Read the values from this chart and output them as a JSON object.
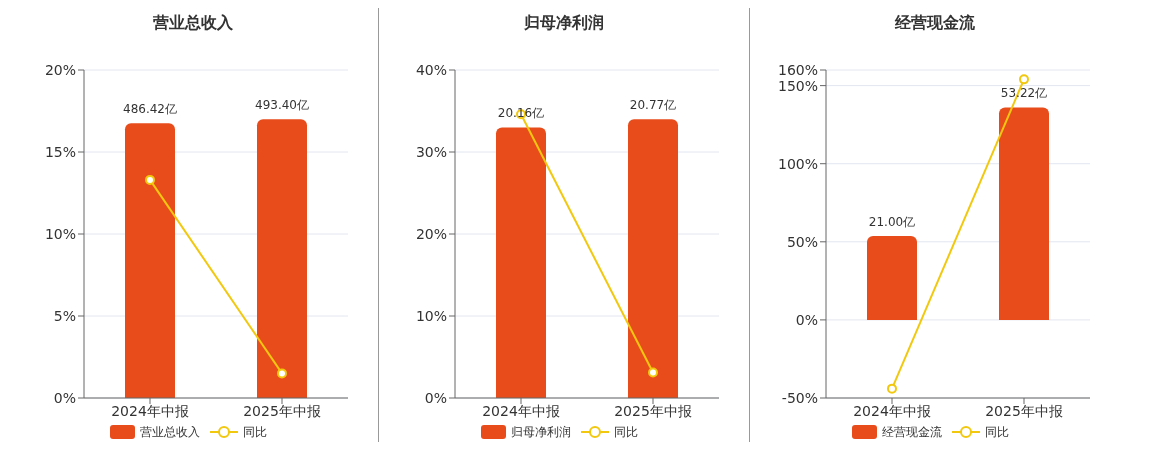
{
  "chart_data": [
    {
      "type": "bar",
      "title": "营业总收入",
      "categories": [
        "2024年中报",
        "2025年中报"
      ],
      "ylim": [
        0,
        20
      ],
      "yticks": [
        {
          "value": 0,
          "label": "0%"
        },
        {
          "value": 5,
          "label": "5%"
        },
        {
          "value": 10,
          "label": "10%"
        },
        {
          "value": 15,
          "label": "15%"
        },
        {
          "value": 20,
          "label": "20%"
        }
      ],
      "grid": "y",
      "legend": "bottom",
      "series": [
        {
          "name": "营业总收入",
          "axis": "y2",
          "color": "#e84c1b",
          "values": [
            486.42,
            493.4
          ],
          "value_labels": [
            "486.42亿",
            "493.40亿"
          ]
        },
        {
          "name": "同比",
          "type": "line",
          "color": "#f2c80f",
          "marker": "circle",
          "values": [
            13.3,
            1.5
          ]
        }
      ]
    },
    {
      "type": "bar",
      "title": "归母净利润",
      "categories": [
        "2024年中报",
        "2025年中报"
      ],
      "ylim": [
        0,
        40
      ],
      "yticks": [
        {
          "value": 0,
          "label": "0%"
        },
        {
          "value": 10,
          "label": "10%"
        },
        {
          "value": 20,
          "label": "20%"
        },
        {
          "value": 30,
          "label": "30%"
        },
        {
          "value": 40,
          "label": "40%"
        }
      ],
      "grid": "y",
      "legend": "bottom",
      "series": [
        {
          "name": "归母净利润",
          "axis": "y2",
          "color": "#e84c1b",
          "values": [
            20.16,
            20.77
          ],
          "value_labels": [
            "20.16亿",
            "20.77亿"
          ]
        },
        {
          "name": "同比",
          "type": "line",
          "color": "#f2c80f",
          "marker": "circle",
          "values": [
            34.6,
            3.1
          ]
        }
      ]
    },
    {
      "type": "bar",
      "title": "经营现金流",
      "categories": [
        "2024年中报",
        "2025年中报"
      ],
      "ylim": [
        -50,
        160
      ],
      "yticks": [
        {
          "value": -50,
          "label": "-50%"
        },
        {
          "value": 0,
          "label": "0%"
        },
        {
          "value": 50,
          "label": "50%"
        },
        {
          "value": 100,
          "label": "100%"
        },
        {
          "value": 150,
          "label": "150%"
        },
        {
          "value": 160,
          "label": "160%"
        }
      ],
      "grid": "y",
      "legend": "bottom",
      "series": [
        {
          "name": "经营现金流",
          "axis": "y2",
          "color": "#e84c1b",
          "values": [
            21.0,
            53.22
          ],
          "value_labels": [
            "21.00亿",
            "53.22亿"
          ]
        },
        {
          "name": "同比",
          "type": "line",
          "color": "#f2c80f",
          "marker": "circle",
          "values": [
            -44,
            154
          ]
        }
      ]
    }
  ]
}
